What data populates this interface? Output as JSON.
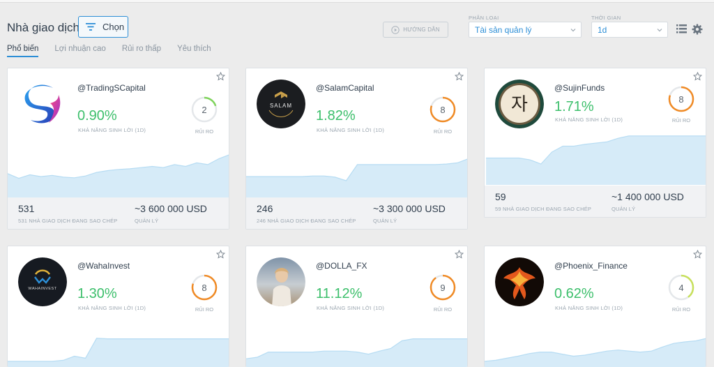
{
  "header": {
    "title": "Nhà giao dịch",
    "choose_label": "Chọn",
    "guide_label": "HƯỚNG DẪN",
    "category_label": "PHÂN LOẠI",
    "category_value": "Tài sản quản lý",
    "time_label": "THỜI GIAN",
    "time_value": "1d"
  },
  "tabs": [
    "Phổ biến",
    "Lợi nhuận cao",
    "Rủi ro thấp",
    "Yêu thích"
  ],
  "labels": {
    "profit": "KHẢ NĂNG SINH LỜI (1D)",
    "risk": "RỦI RO",
    "managed": "QUẢN LÝ"
  },
  "cards": [
    {
      "handle": "@TradingSCapital",
      "profit": "0.90%",
      "risk": "2",
      "risk_color": "#7ed35a",
      "copiers": "531",
      "copiers_label": "531 NHÀ GIAO DỊCH ĐANG SAO CHÉP",
      "aum": "~3 600 000 USD",
      "avatar_text": "",
      "spark": [
        40,
        32,
        38,
        35,
        37,
        34,
        33,
        36,
        42,
        45,
        47,
        48,
        50,
        52,
        50,
        55,
        52,
        58,
        55,
        65,
        72
      ]
    },
    {
      "handle": "@SalamCapital",
      "profit": "1.82%",
      "risk": "8",
      "risk_color": "#f08a24",
      "copiers": "246",
      "copiers_label": "246 NHÀ GIAO DỊCH ĐANG SAO CHÉP",
      "aum": "~3 300 000 USD",
      "avatar_text": "SALAM",
      "spark": [
        35,
        35,
        35,
        35,
        35,
        35,
        36,
        36,
        34,
        28,
        55,
        55,
        55,
        55,
        55,
        55,
        55,
        55,
        56,
        58,
        65
      ]
    },
    {
      "handle": "@SujinFunds",
      "profit": "1.71%",
      "risk": "8",
      "risk_color": "#f08a24",
      "copiers": "59",
      "copiers_label": "59 NHÀ GIAO DỊCH ĐANG SAO CHÉP",
      "aum": "~1 400 000 USD",
      "avatar_text": "자",
      "spark": [
        45,
        45,
        45,
        45,
        42,
        35,
        55,
        65,
        65,
        68,
        70,
        72,
        78,
        82,
        82,
        82,
        82,
        82,
        82,
        82,
        82
      ]
    },
    {
      "handle": "@WahaInvest",
      "profit": "1.30%",
      "risk": "8",
      "risk_color": "#f08a24",
      "copiers": "",
      "copiers_label": "",
      "aum": "",
      "avatar_text": "WAHAINVEST",
      "spark": [
        20,
        20,
        20,
        20,
        20,
        22,
        30,
        26,
        65,
        64,
        64,
        64,
        64,
        64,
        64,
        64,
        64,
        64,
        64,
        64,
        64
      ]
    },
    {
      "handle": "@DOLLA_FX",
      "profit": "11.12%",
      "risk": "9",
      "risk_color": "#f08a24",
      "copiers": "",
      "copiers_label": "",
      "aum": "",
      "avatar_text": "",
      "spark": [
        25,
        28,
        38,
        38,
        38,
        38,
        38,
        40,
        40,
        40,
        38,
        34,
        40,
        45,
        60,
        64,
        64,
        64,
        64,
        64,
        64
      ]
    },
    {
      "handle": "@Phoenix_Finance",
      "profit": "0.62%",
      "risk": "4",
      "risk_color": "#c7e05a",
      "copiers": "",
      "copiers_label": "",
      "aum": "",
      "avatar_text": "",
      "spark": [
        20,
        22,
        26,
        30,
        35,
        38,
        38,
        34,
        30,
        32,
        36,
        40,
        42,
        40,
        38,
        40,
        48,
        55,
        58,
        60,
        65
      ]
    }
  ]
}
